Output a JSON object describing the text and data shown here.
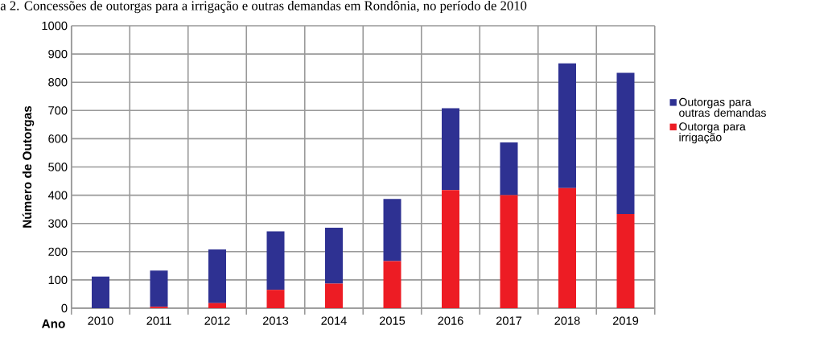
{
  "chart_data": {
    "type": "bar",
    "stacked": true,
    "title": "a 2. Concessões de outorgas para a irrigação e outras demandas em Rondônia, no período de 2010",
    "xlabel": "Ano",
    "ylabel": "Número de Outorgas",
    "categories": [
      "2010",
      "2011",
      "2012",
      "2013",
      "2014",
      "2015",
      "2016",
      "2017",
      "2018",
      "2019"
    ],
    "series": [
      {
        "name": "Outorga para irrigação",
        "color": "#ed1c24",
        "values": [
          0,
          5,
          18,
          65,
          87,
          167,
          418,
          400,
          425,
          333
        ]
      },
      {
        "name": "Outorgas para outras demandas",
        "color": "#2e3192",
        "values": [
          112,
          128,
          190,
          207,
          198,
          220,
          290,
          187,
          442,
          500
        ]
      }
    ],
    "ylim": [
      0,
      1000
    ],
    "yticks": [
      0,
      100,
      200,
      300,
      400,
      500,
      600,
      700,
      800,
      900,
      1000
    ],
    "grid": true,
    "legend": "right"
  }
}
